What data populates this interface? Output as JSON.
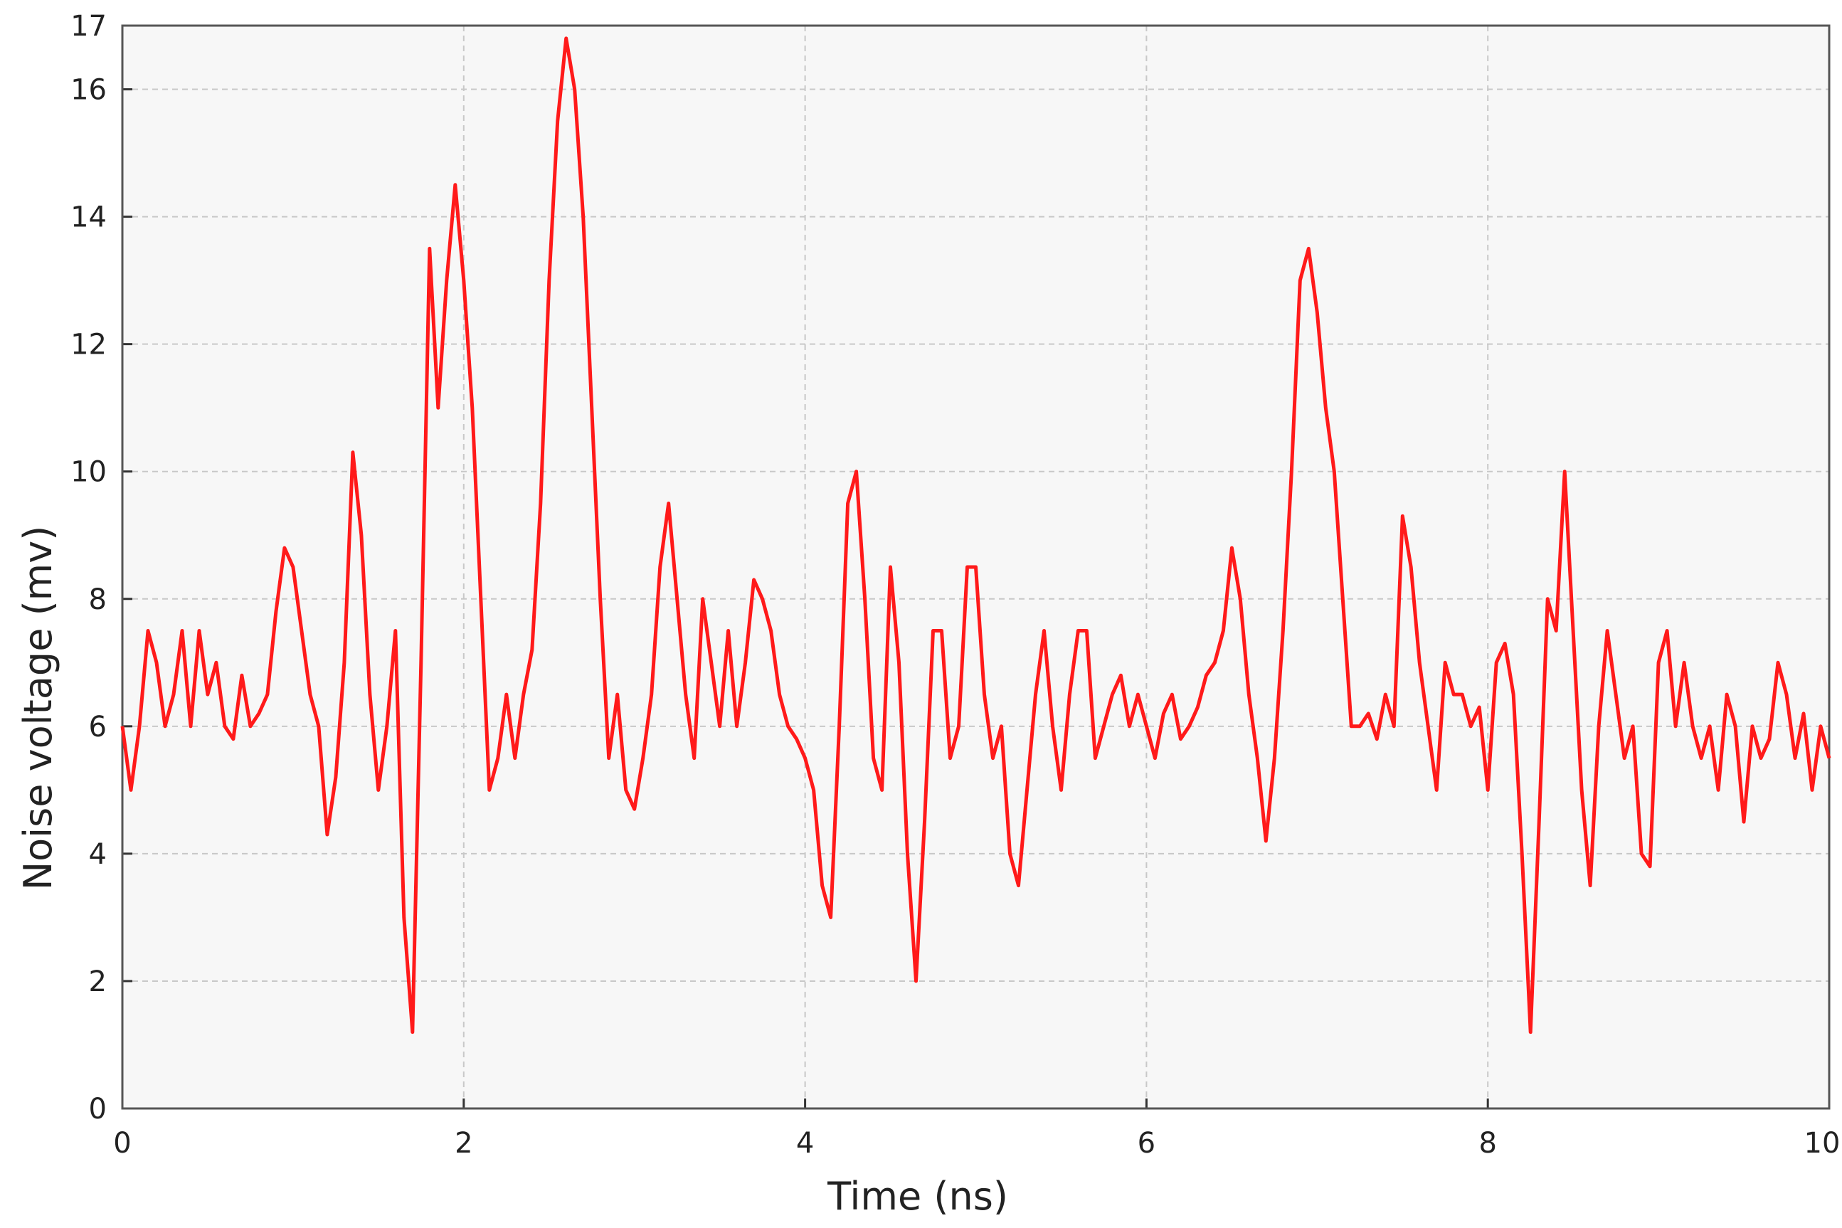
{
  "chart_data": {
    "type": "line",
    "x_label": "Time (ns)",
    "y_label": "Noise voltage (mv)",
    "x": [
      0,
      0.05,
      0.1,
      0.15,
      0.2,
      0.25,
      0.3,
      0.35,
      0.4,
      0.45,
      0.5,
      0.55,
      0.6,
      0.65,
      0.7,
      0.75,
      0.8,
      0.85,
      0.9,
      0.95,
      1,
      1.05,
      1.1,
      1.15,
      1.2,
      1.25,
      1.3,
      1.35,
      1.4,
      1.45,
      1.5,
      1.55,
      1.6,
      1.65,
      1.7,
      1.75,
      1.8,
      1.85,
      1.9,
      1.95,
      2,
      2.05,
      2.1,
      2.15,
      2.2,
      2.25,
      2.3,
      2.35,
      2.4,
      2.45,
      2.5,
      2.55,
      2.6,
      2.65,
      2.7,
      2.75,
      2.8,
      2.85,
      2.9,
      2.95,
      3,
      3.05,
      3.1,
      3.15,
      3.2,
      3.25,
      3.3,
      3.35,
      3.4,
      3.45,
      3.5,
      3.55,
      3.6,
      3.65,
      3.7,
      3.75,
      3.8,
      3.85,
      3.9,
      3.95,
      4,
      4.05,
      4.1,
      4.15,
      4.2,
      4.25,
      4.3,
      4.35,
      4.4,
      4.45,
      4.5,
      4.55,
      4.6,
      4.65,
      4.7,
      4.75,
      4.8,
      4.85,
      4.9,
      4.95,
      5,
      5.05,
      5.1,
      5.15,
      5.2,
      5.25,
      5.3,
      5.35,
      5.4,
      5.45,
      5.5,
      5.55,
      5.6,
      5.65,
      5.7,
      5.75,
      5.8,
      5.85,
      5.9,
      5.95,
      6,
      6.05,
      6.1,
      6.15,
      6.2,
      6.25,
      6.3,
      6.35,
      6.4,
      6.45,
      6.5,
      6.55,
      6.6,
      6.65,
      6.7,
      6.75,
      6.8,
      6.85,
      6.9,
      6.95,
      7,
      7.05,
      7.1,
      7.15,
      7.2,
      7.25,
      7.3,
      7.35,
      7.4,
      7.45,
      7.5,
      7.55,
      7.6,
      7.65,
      7.7,
      7.75,
      7.8,
      7.85,
      7.9,
      7.95,
      8,
      8.05,
      8.1,
      8.15,
      8.2,
      8.25,
      8.3,
      8.35,
      8.4,
      8.45,
      8.5,
      8.55,
      8.6,
      8.65,
      8.7,
      8.75,
      8.8,
      8.85,
      8.9,
      8.95,
      9,
      9.05,
      9.1,
      9.15,
      9.2,
      9.25,
      9.3,
      9.35,
      9.4,
      9.45,
      9.5,
      9.55,
      9.6,
      9.65,
      9.7,
      9.75,
      9.8,
      9.85,
      9.9,
      9.95,
      10
    ],
    "series": [
      {
        "color": "#ff1a1a",
        "values": [
          6,
          5,
          6,
          7.5,
          7,
          6,
          6.5,
          7.5,
          6,
          7.5,
          6.5,
          7,
          6,
          5.8,
          6.8,
          6,
          6.2,
          6.5,
          7.8,
          8.8,
          8.5,
          7.5,
          6.5,
          6,
          4.3,
          5.2,
          7,
          10.3,
          9,
          6.5,
          5,
          6,
          7.5,
          3,
          1.2,
          7,
          13.5,
          11,
          13,
          14.5,
          13,
          11,
          8,
          5,
          5.5,
          6.5,
          5.5,
          6.5,
          7.2,
          9.5,
          13,
          15.5,
          16.8,
          16,
          14,
          11,
          8,
          5.5,
          6.5,
          5,
          4.7,
          5.5,
          6.5,
          8.5,
          9.5,
          8,
          6.5,
          5.5,
          8,
          7,
          6,
          7.5,
          6,
          7,
          8.3,
          8,
          7.5,
          6.5,
          6,
          5.8,
          5.5,
          5,
          3.5,
          3,
          6,
          9.5,
          10,
          8,
          5.5,
          5,
          8.5,
          7,
          4,
          2,
          4.5,
          7.5,
          7.5,
          5.5,
          6,
          8.5,
          8.5,
          6.5,
          5.5,
          6,
          4,
          3.5,
          5,
          6.5,
          7.5,
          6,
          5,
          6.5,
          7.5,
          7.5,
          5.5,
          6,
          6.5,
          6.8,
          6,
          6.5,
          6,
          5.5,
          6.2,
          6.5,
          5.8,
          6,
          6.3,
          6.8,
          7,
          7.5,
          8.8,
          8,
          6.5,
          5.5,
          4.2,
          5.5,
          7.5,
          10,
          13,
          13.5,
          12.5,
          11,
          10,
          8,
          6,
          6,
          6.2,
          5.8,
          6.5,
          6,
          9.3,
          8.5,
          7,
          6,
          5,
          7,
          6.5,
          6.5,
          6,
          6.3,
          5,
          7,
          7.3,
          6.5,
          4,
          1.2,
          4.5,
          8,
          7.5,
          10,
          7.5,
          5,
          3.5,
          6,
          7.5,
          6.5,
          5.5,
          6,
          4,
          3.8,
          7,
          7.5,
          6,
          7,
          6,
          5.5,
          6,
          5,
          6.5,
          6,
          4.5,
          6,
          5.5,
          5.8,
          7,
          6.5,
          5.5,
          6.2,
          5,
          6,
          5.5
        ]
      }
    ],
    "xlim": [
      0,
      10
    ],
    "xticks": [
      0,
      2,
      4,
      6,
      8,
      10
    ],
    "ylim": [
      0,
      17
    ],
    "yticks": [
      0,
      2,
      4,
      6,
      8,
      10,
      12,
      14,
      16,
      17
    ],
    "grid": true
  }
}
